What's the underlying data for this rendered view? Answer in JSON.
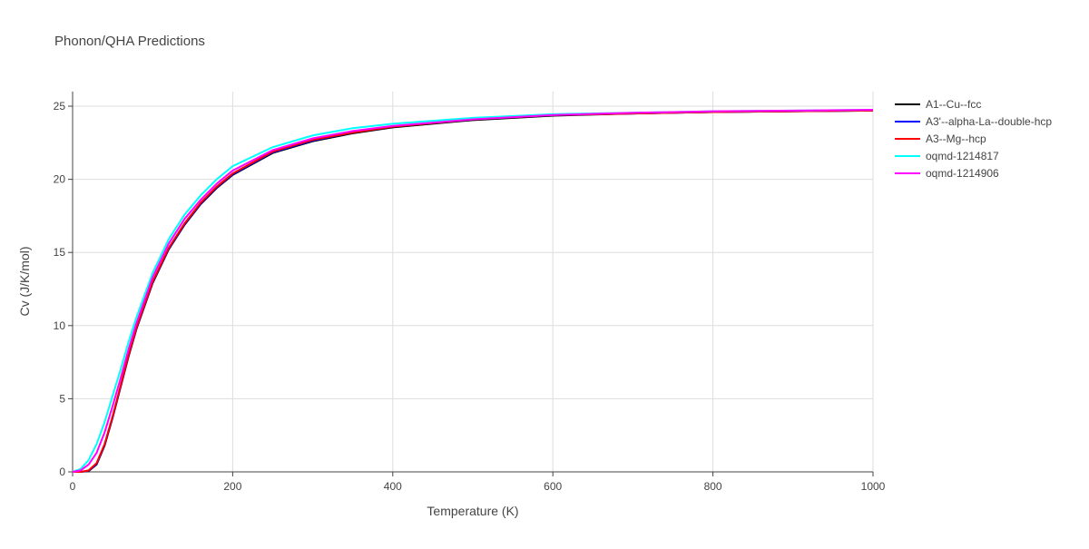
{
  "chart_data": {
    "type": "line",
    "title": "Phonon/QHA Predictions",
    "xlabel": "Temperature (K)",
    "ylabel": "Cv (J/K/mol)",
    "x": [
      0,
      10,
      20,
      30,
      40,
      50,
      60,
      70,
      80,
      100,
      120,
      140,
      160,
      180,
      200,
      250,
      300,
      350,
      400,
      500,
      600,
      700,
      800,
      900,
      1000
    ],
    "series": [
      {
        "name": "A1--Cu--fcc",
        "color": "#000000",
        "values": [
          0,
          0,
          0.05,
          0.5,
          1.8,
          3.7,
          5.8,
          7.9,
          9.8,
          12.9,
          15.2,
          16.9,
          18.3,
          19.4,
          20.3,
          21.8,
          22.6,
          23.15,
          23.55,
          24.05,
          24.35,
          24.5,
          24.6,
          24.65,
          24.7
        ]
      },
      {
        "name": "A3'--alpha-La--double-hcp",
        "color": "#0000ff",
        "values": [
          0,
          0,
          0.08,
          0.55,
          1.85,
          3.75,
          5.85,
          7.95,
          9.85,
          12.95,
          15.25,
          16.95,
          18.35,
          19.45,
          20.35,
          21.85,
          22.65,
          23.2,
          23.6,
          24.1,
          24.4,
          24.5,
          24.6,
          24.65,
          24.7
        ]
      },
      {
        "name": "A3--Mg--hcp",
        "color": "#ff0000",
        "values": [
          0,
          0,
          0.1,
          0.6,
          1.9,
          3.8,
          5.9,
          8.0,
          9.9,
          13.0,
          15.3,
          17.0,
          18.4,
          19.5,
          20.4,
          21.9,
          22.7,
          23.2,
          23.6,
          24.1,
          24.4,
          24.5,
          24.6,
          24.65,
          24.7
        ]
      },
      {
        "name": "oqmd-1214817",
        "color": "#00ffff",
        "values": [
          0,
          0.2,
          0.8,
          1.9,
          3.4,
          5.2,
          7.0,
          8.9,
          10.6,
          13.6,
          15.9,
          17.6,
          18.9,
          20.0,
          20.9,
          22.2,
          23.0,
          23.5,
          23.8,
          24.2,
          24.45,
          24.55,
          24.65,
          24.7,
          24.75
        ]
      },
      {
        "name": "oqmd-1214906",
        "color": "#ff00ff",
        "values": [
          0,
          0.1,
          0.5,
          1.3,
          2.7,
          4.5,
          6.4,
          8.4,
          10.2,
          13.3,
          15.6,
          17.3,
          18.6,
          19.7,
          20.6,
          22.0,
          22.8,
          23.3,
          23.65,
          24.1,
          24.4,
          24.55,
          24.65,
          24.7,
          24.75
        ]
      }
    ],
    "xlim": [
      0,
      1000
    ],
    "xticks": [
      0,
      200,
      400,
      600,
      800,
      1000
    ],
    "ylim": [
      0,
      26
    ],
    "yticks": [
      0,
      5,
      10,
      15,
      20,
      25
    ],
    "grid": true,
    "legend": "right"
  }
}
